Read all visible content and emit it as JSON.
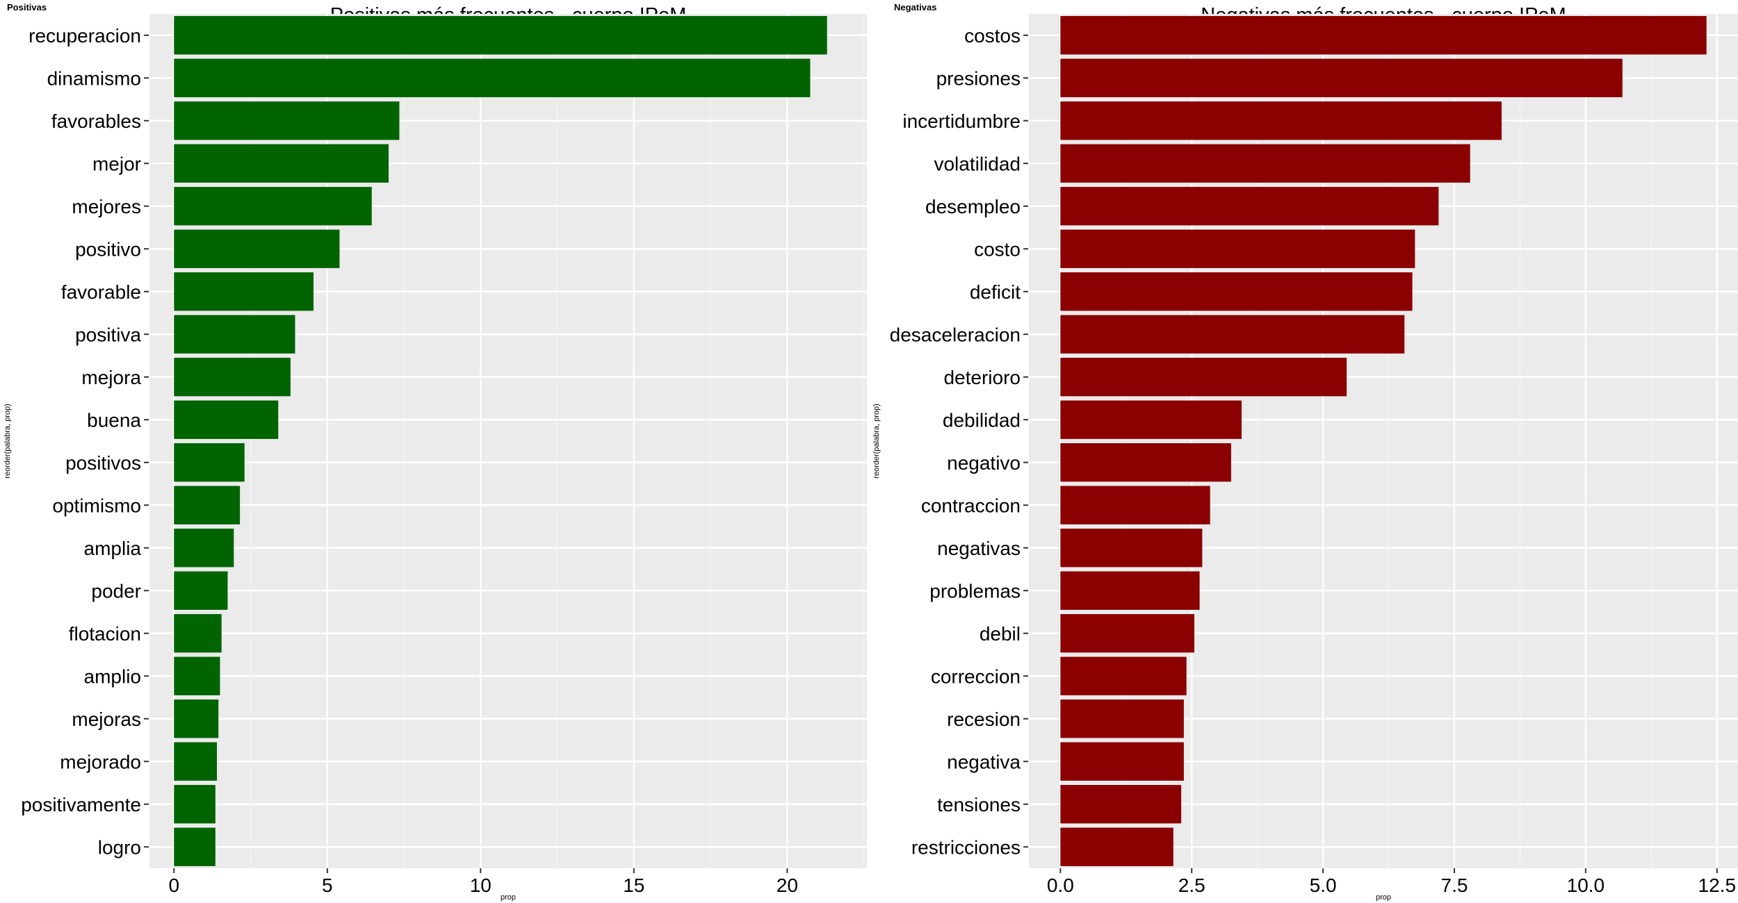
{
  "chart_data": [
    {
      "type": "bar",
      "orientation": "horizontal",
      "tag": "Positivas",
      "title": "Positivas más frecuentes - cuerpo IPoM",
      "xlabel": "prop",
      "ylabel": "reorder(palabra, prop)",
      "categories": [
        "recuperacion",
        "dinamismo",
        "favorables",
        "mejor",
        "mejores",
        "positivo",
        "favorable",
        "positiva",
        "mejora",
        "buena",
        "positivos",
        "optimismo",
        "amplia",
        "poder",
        "flotacion",
        "amplio",
        "mejoras",
        "mejorado",
        "positivamente",
        "logro"
      ],
      "values": [
        21.3,
        20.75,
        7.35,
        7.0,
        6.45,
        5.4,
        4.55,
        3.95,
        3.8,
        3.4,
        2.3,
        2.15,
        1.95,
        1.75,
        1.55,
        1.5,
        1.45,
        1.4,
        1.35,
        1.35
      ],
      "xlim": [
        -0.8,
        22.6
      ],
      "xticks": [
        0,
        5,
        10,
        15,
        20
      ],
      "xtick_labels": [
        "0",
        "5",
        "10",
        "15",
        "20"
      ],
      "bar_color": "#006400",
      "grid": true
    },
    {
      "type": "bar",
      "orientation": "horizontal",
      "tag": "Negativas",
      "title": "Negativas más frecuentes - cuerpo IPoM",
      "xlabel": "prop",
      "ylabel": "reorder(palabra, prop)",
      "categories": [
        "costos",
        "presiones",
        "incertidumbre",
        "volatilidad",
        "desempleo",
        "costo",
        "deficit",
        "desaceleracion",
        "deterioro",
        "debilidad",
        "negativo",
        "contraccion",
        "negativas",
        "problemas",
        "debil",
        "correccion",
        "recesion",
        "negativa",
        "tensiones",
        "restricciones"
      ],
      "values": [
        12.3,
        10.7,
        8.4,
        7.8,
        7.2,
        6.75,
        6.7,
        6.55,
        5.45,
        3.45,
        3.25,
        2.85,
        2.7,
        2.65,
        2.55,
        2.4,
        2.35,
        2.35,
        2.3,
        2.15
      ],
      "xlim": [
        -0.6,
        12.9
      ],
      "xticks": [
        0,
        2.5,
        5,
        7.5,
        10,
        12.5
      ],
      "xtick_labels": [
        "0.0",
        "2.5",
        "5.0",
        "7.5",
        "10.0",
        "12.5"
      ],
      "bar_color": "#8B0000",
      "grid": true
    }
  ],
  "colors": {
    "panel_background": "#EBEBEB",
    "grid_major": "#FFFFFF",
    "grid_minor": "#F5F5F5",
    "text": "#000000"
  }
}
